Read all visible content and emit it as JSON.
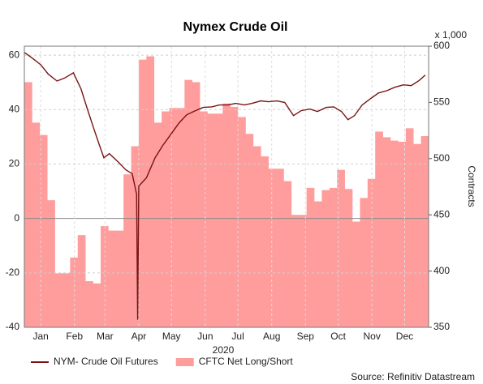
{
  "chart_data": {
    "type": "line-area",
    "title": "Nymex Crude Oil",
    "xlabel": "2020",
    "y2label": "Contracts",
    "y2unit": "x 1,000",
    "source": "Source: Refinitiv Datastream",
    "xlim": [
      0,
      371
    ],
    "xticks": [
      {
        "value": 15,
        "label": "Jan"
      },
      {
        "value": 46,
        "label": "Feb"
      },
      {
        "value": 74,
        "label": "Mar"
      },
      {
        "value": 105,
        "label": "Apr"
      },
      {
        "value": 135,
        "label": "May"
      },
      {
        "value": 166,
        "label": "Jun"
      },
      {
        "value": 196,
        "label": "Jul"
      },
      {
        "value": 227,
        "label": "Aug"
      },
      {
        "value": 258,
        "label": "Sep"
      },
      {
        "value": 288,
        "label": "Oct"
      },
      {
        "value": 319,
        "label": "Nov"
      },
      {
        "value": 349,
        "label": "Dec"
      }
    ],
    "ylim": [
      -40,
      63.3
    ],
    "yticks": [
      -40,
      -20,
      0,
      20,
      40,
      60
    ],
    "y2lim": [
      350,
      600
    ],
    "y2ticks": [
      350,
      400,
      450,
      500,
      550,
      600
    ],
    "grid": true,
    "legend": "bottom",
    "series": [
      {
        "name": "CFTC Net Long/Short",
        "kind": "area",
        "axis": "y2",
        "color": "#ff9c9c",
        "x": [
          0,
          7,
          14,
          21,
          28,
          35,
          42,
          49,
          56,
          63,
          70,
          77,
          84,
          91,
          98,
          105,
          112,
          119,
          126,
          133,
          140,
          147,
          154,
          161,
          168,
          175,
          182,
          189,
          196,
          203,
          210,
          217,
          224,
          231,
          238,
          245,
          252,
          259,
          266,
          273,
          280,
          287,
          294,
          301,
          308,
          315,
          322,
          329,
          336,
          343,
          350,
          357,
          364
        ],
        "values": [
          568,
          532,
          521,
          463,
          398,
          398,
          412,
          432,
          391,
          389,
          440,
          436,
          436,
          486,
          511,
          588,
          591,
          532,
          542,
          545,
          545,
          570,
          568,
          542,
          540,
          540,
          549,
          546,
          537,
          522,
          511,
          502,
          491,
          491,
          480,
          450,
          450,
          474,
          462,
          472,
          474,
          490,
          473,
          444,
          465,
          482,
          524,
          519,
          516,
          515,
          527,
          513,
          520
        ]
      },
      {
        "name": "NYM- Crude Oil Futures",
        "kind": "line",
        "axis": "y",
        "color": "#7a1414",
        "x": [
          0,
          7,
          15,
          22,
          30,
          37,
          45,
          52,
          58,
          64,
          69,
          73,
          78,
          86,
          93,
          99,
          103,
          104,
          105,
          112,
          120,
          127,
          135,
          142,
          149,
          157,
          164,
          172,
          179,
          187,
          194,
          202,
          209,
          217,
          224,
          232,
          239,
          247,
          254,
          262,
          269,
          277,
          284,
          291,
          297,
          303,
          310,
          318,
          325,
          333,
          340,
          348,
          355,
          362,
          368
        ],
        "values": [
          61,
          59,
          56.5,
          53,
          50.5,
          51.6,
          53.5,
          47.6,
          40,
          32.7,
          26.8,
          22.3,
          23.8,
          20.8,
          17.9,
          16.4,
          8.9,
          -37.2,
          11.9,
          14.9,
          22.3,
          26.8,
          31.2,
          35.1,
          38.1,
          39.6,
          40.8,
          41,
          41.7,
          41.7,
          42.3,
          41.7,
          42.3,
          43.2,
          42.9,
          43.2,
          42.6,
          37.8,
          39.6,
          40.2,
          39.3,
          40.8,
          41,
          39.3,
          36.3,
          37.8,
          41.7,
          44.1,
          46.1,
          47,
          48.2,
          49.1,
          48.8,
          50.6,
          52.7
        ]
      }
    ]
  }
}
